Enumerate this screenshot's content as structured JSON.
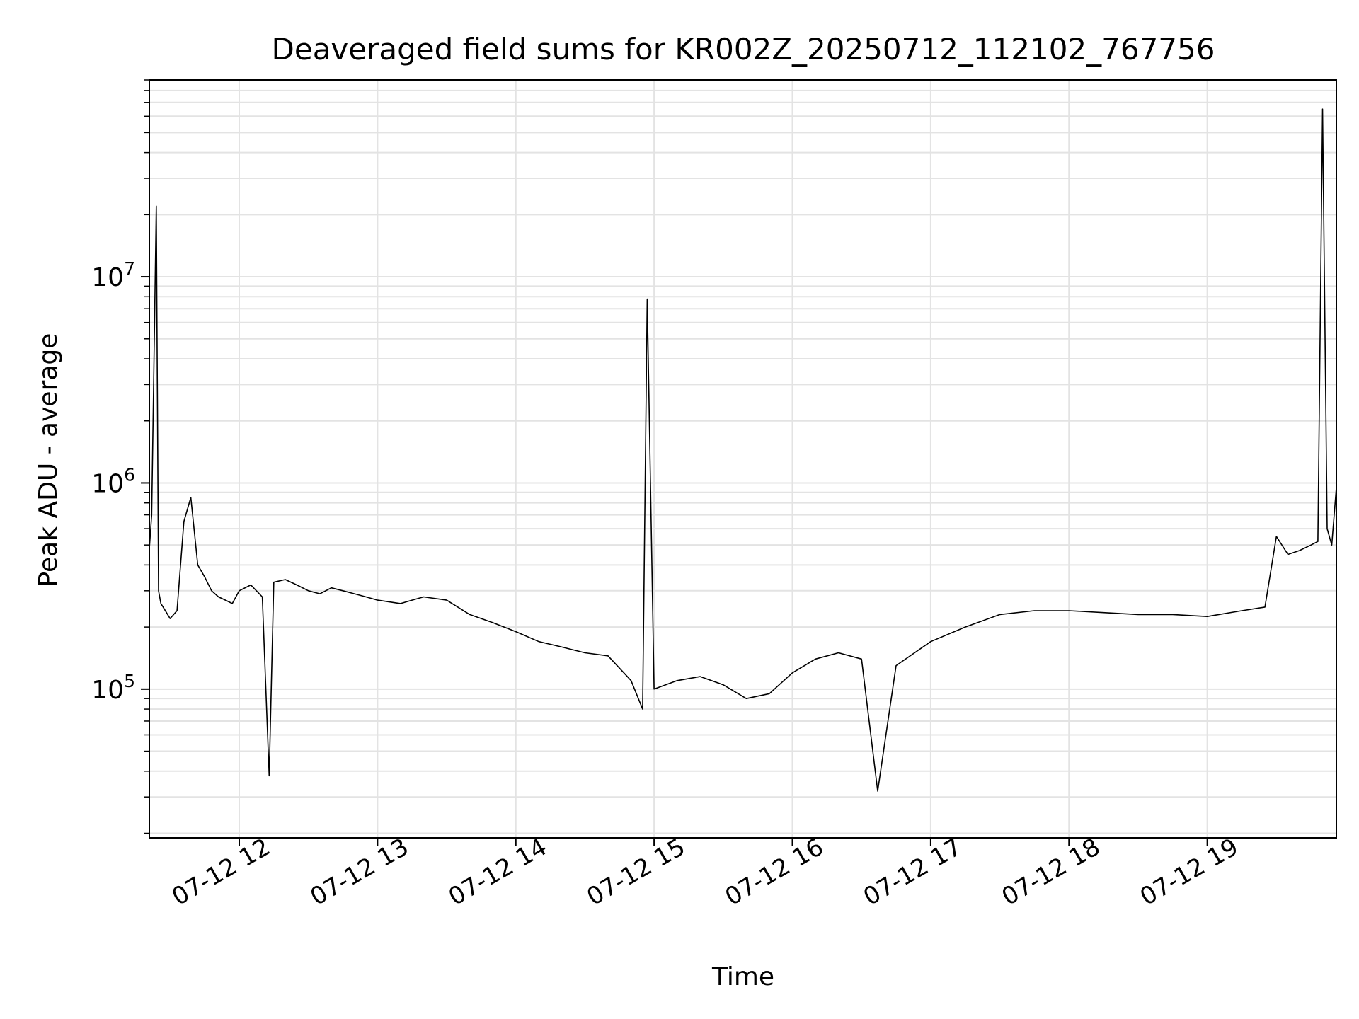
{
  "chart_data": {
    "type": "line",
    "title": "Deaveraged field sums for KR002Z_20250712_112102_767756",
    "xlabel": "Time",
    "ylabel": "Peak ADU - average",
    "yscale": "log",
    "ylim": [
      19000,
      90000000
    ],
    "xlim": [
      "2025-07-12 11:21",
      "2025-07-12 19:56"
    ],
    "x_ticks": [
      {
        "label": "07-12 12",
        "time": "2025-07-12 12:00"
      },
      {
        "label": "07-12 13",
        "time": "2025-07-12 13:00"
      },
      {
        "label": "07-12 14",
        "time": "2025-07-12 14:00"
      },
      {
        "label": "07-12 15",
        "time": "2025-07-12 15:00"
      },
      {
        "label": "07-12 16",
        "time": "2025-07-12 16:00"
      },
      {
        "label": "07-12 17",
        "time": "2025-07-12 17:00"
      },
      {
        "label": "07-12 18",
        "time": "2025-07-12 18:00"
      },
      {
        "label": "07-12 19",
        "time": "2025-07-12 19:00"
      }
    ],
    "y_ticks": [
      {
        "label": "10",
        "exp": "5",
        "value": 100000
      },
      {
        "label": "10",
        "exp": "6",
        "value": 1000000
      },
      {
        "label": "10",
        "exp": "7",
        "value": 10000000
      }
    ],
    "grid": true,
    "line_color": "#000000",
    "grid_color": "#e3e3e3",
    "series": [
      {
        "x": [
          "2025-07-12 11:21",
          "2025-07-12 11:22",
          "2025-07-12 11:24",
          "2025-07-12 11:25",
          "2025-07-12 11:26",
          "2025-07-12 11:27",
          "2025-07-12 11:30",
          "2025-07-12 11:33",
          "2025-07-12 11:36",
          "2025-07-12 11:39",
          "2025-07-12 11:42",
          "2025-07-12 11:45",
          "2025-07-12 11:48",
          "2025-07-12 11:51",
          "2025-07-12 11:54",
          "2025-07-12 11:57",
          "2025-07-12 12:00",
          "2025-07-12 12:05",
          "2025-07-12 12:10",
          "2025-07-12 12:13",
          "2025-07-12 12:15",
          "2025-07-12 12:20",
          "2025-07-12 12:25",
          "2025-07-12 12:30",
          "2025-07-12 12:35",
          "2025-07-12 12:40",
          "2025-07-12 12:45",
          "2025-07-12 12:50",
          "2025-07-12 12:55",
          "2025-07-12 13:00",
          "2025-07-12 13:10",
          "2025-07-12 13:15",
          "2025-07-12 13:20",
          "2025-07-12 13:30",
          "2025-07-12 13:40",
          "2025-07-12 13:50",
          "2025-07-12 14:00",
          "2025-07-12 14:10",
          "2025-07-12 14:20",
          "2025-07-12 14:30",
          "2025-07-12 14:40",
          "2025-07-12 14:50",
          "2025-07-12 14:55",
          "2025-07-12 14:57",
          "2025-07-12 15:00",
          "2025-07-12 15:10",
          "2025-07-12 15:20",
          "2025-07-12 15:30",
          "2025-07-12 15:40",
          "2025-07-12 15:50",
          "2025-07-12 16:00",
          "2025-07-12 16:10",
          "2025-07-12 16:20",
          "2025-07-12 16:30",
          "2025-07-12 16:37",
          "2025-07-12 16:45",
          "2025-07-12 17:00",
          "2025-07-12 17:15",
          "2025-07-12 17:30",
          "2025-07-12 17:45",
          "2025-07-12 18:00",
          "2025-07-12 18:15",
          "2025-07-12 18:30",
          "2025-07-12 18:45",
          "2025-07-12 19:00",
          "2025-07-12 19:15",
          "2025-07-12 19:25",
          "2025-07-12 19:30",
          "2025-07-12 19:35",
          "2025-07-12 19:40",
          "2025-07-12 19:45",
          "2025-07-12 19:48",
          "2025-07-12 19:50",
          "2025-07-12 19:52",
          "2025-07-12 19:54",
          "2025-07-12 19:56"
        ],
        "y": [
          480000,
          700000,
          22000000,
          300000,
          260000,
          250000,
          220000,
          240000,
          650000,
          850000,
          400000,
          350000,
          300000,
          280000,
          270000,
          260000,
          300000,
          320000,
          280000,
          38000,
          330000,
          340000,
          320000,
          300000,
          290000,
          310000,
          300000,
          290000,
          280000,
          270000,
          260000,
          270000,
          280000,
          270000,
          230000,
          210000,
          190000,
          170000,
          160000,
          150000,
          145000,
          110000,
          80000,
          7800000,
          100000,
          110000,
          115000,
          105000,
          90000,
          95000,
          120000,
          140000,
          150000,
          140000,
          32000,
          130000,
          170000,
          200000,
          230000,
          240000,
          240000,
          235000,
          230000,
          230000,
          225000,
          240000,
          250000,
          550000,
          450000,
          470000,
          500000,
          520000,
          65000000,
          600000,
          500000,
          950000
        ]
      }
    ]
  }
}
